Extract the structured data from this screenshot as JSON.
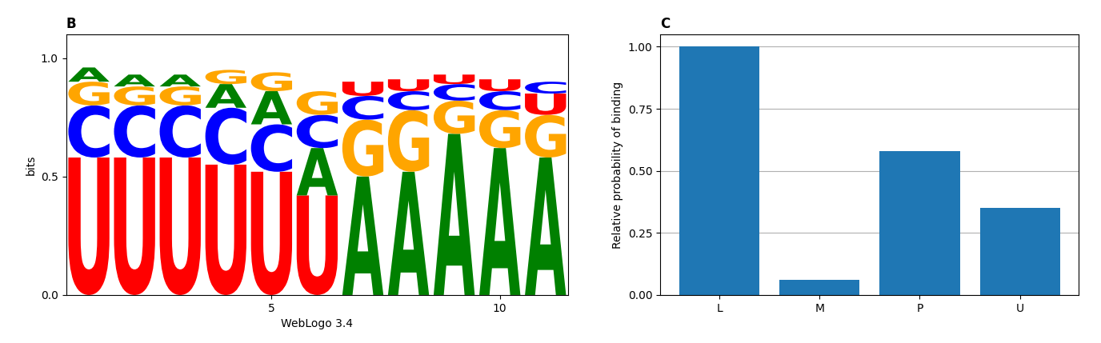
{
  "chart_data": [
    {
      "type": "sequence_logo",
      "title": "B",
      "x": [
        1,
        2,
        3,
        4,
        5,
        6,
        7,
        8,
        9,
        10,
        11
      ],
      "stacks": [
        [
          {
            "letter": "U",
            "color": "#ff0000",
            "value": 0.58
          },
          {
            "letter": "C",
            "color": "#0000ff",
            "value": 0.22
          },
          {
            "letter": "G",
            "color": "#ffa500",
            "value": 0.1
          },
          {
            "letter": "A",
            "color": "#008000",
            "value": 0.06
          }
        ],
        [
          {
            "letter": "U",
            "color": "#ff0000",
            "value": 0.58
          },
          {
            "letter": "C",
            "color": "#0000ff",
            "value": 0.22
          },
          {
            "letter": "G",
            "color": "#ffa500",
            "value": 0.08
          },
          {
            "letter": "A",
            "color": "#008000",
            "value": 0.05
          }
        ],
        [
          {
            "letter": "U",
            "color": "#ff0000",
            "value": 0.58
          },
          {
            "letter": "C",
            "color": "#0000ff",
            "value": 0.22
          },
          {
            "letter": "G",
            "color": "#ffa500",
            "value": 0.08
          },
          {
            "letter": "A",
            "color": "#008000",
            "value": 0.05
          }
        ],
        [
          {
            "letter": "U",
            "color": "#ff0000",
            "value": 0.55
          },
          {
            "letter": "C",
            "color": "#0000ff",
            "value": 0.24
          },
          {
            "letter": "A",
            "color": "#008000",
            "value": 0.1
          },
          {
            "letter": "G",
            "color": "#ffa500",
            "value": 0.06
          }
        ],
        [
          {
            "letter": "U",
            "color": "#ff0000",
            "value": 0.52
          },
          {
            "letter": "C",
            "color": "#0000ff",
            "value": 0.2
          },
          {
            "letter": "A",
            "color": "#008000",
            "value": 0.14
          },
          {
            "letter": "G",
            "color": "#ffa500",
            "value": 0.08
          }
        ],
        [
          {
            "letter": "U",
            "color": "#ff0000",
            "value": 0.42
          },
          {
            "letter": "A",
            "color": "#008000",
            "value": 0.2
          },
          {
            "letter": "C",
            "color": "#0000ff",
            "value": 0.14
          },
          {
            "letter": "G",
            "color": "#ffa500",
            "value": 0.1
          }
        ],
        [
          {
            "letter": "A",
            "color": "#008000",
            "value": 0.5
          },
          {
            "letter": "G",
            "color": "#ffa500",
            "value": 0.24
          },
          {
            "letter": "C",
            "color": "#0000ff",
            "value": 0.1
          },
          {
            "letter": "U",
            "color": "#ff0000",
            "value": 0.06
          }
        ],
        [
          {
            "letter": "A",
            "color": "#008000",
            "value": 0.52
          },
          {
            "letter": "G",
            "color": "#ffa500",
            "value": 0.26
          },
          {
            "letter": "C",
            "color": "#0000ff",
            "value": 0.08
          },
          {
            "letter": "U",
            "color": "#ff0000",
            "value": 0.05
          }
        ],
        [
          {
            "letter": "A",
            "color": "#008000",
            "value": 0.68
          },
          {
            "letter": "G",
            "color": "#ffa500",
            "value": 0.14
          },
          {
            "letter": "C",
            "color": "#0000ff",
            "value": 0.07
          },
          {
            "letter": "U",
            "color": "#ff0000",
            "value": 0.04
          }
        ],
        [
          {
            "letter": "A",
            "color": "#008000",
            "value": 0.62
          },
          {
            "letter": "G",
            "color": "#ffa500",
            "value": 0.16
          },
          {
            "letter": "C",
            "color": "#0000ff",
            "value": 0.08
          },
          {
            "letter": "U",
            "color": "#ff0000",
            "value": 0.05
          }
        ],
        [
          {
            "letter": "A",
            "color": "#008000",
            "value": 0.58
          },
          {
            "letter": "G",
            "color": "#ffa500",
            "value": 0.18
          },
          {
            "letter": "U",
            "color": "#ff0000",
            "value": 0.09
          },
          {
            "letter": "C",
            "color": "#0000ff",
            "value": 0.05
          }
        ]
      ],
      "xlabel": "WebLogo 3.4",
      "ylabel": "bits",
      "xlim": [
        0.5,
        11.5
      ],
      "xticks": [
        5,
        10
      ],
      "ylim": [
        0,
        1.1
      ],
      "yticks": [
        0.0,
        0.5,
        1.0
      ]
    },
    {
      "type": "bar",
      "title": "C",
      "categories": [
        "L",
        "M",
        "P",
        "U"
      ],
      "values": [
        1.0,
        0.06,
        0.58,
        0.35
      ],
      "ylabel": "Relative probability of binding",
      "ylim": [
        0,
        1.05
      ],
      "yticks": [
        {
          "value": 0.0,
          "label": "0.00"
        },
        0.25,
        {
          "value": 0.5,
          "label": "0.50"
        },
        0.75,
        {
          "value": 1.0,
          "label": "1.00"
        }
      ],
      "grid": true
    }
  ]
}
